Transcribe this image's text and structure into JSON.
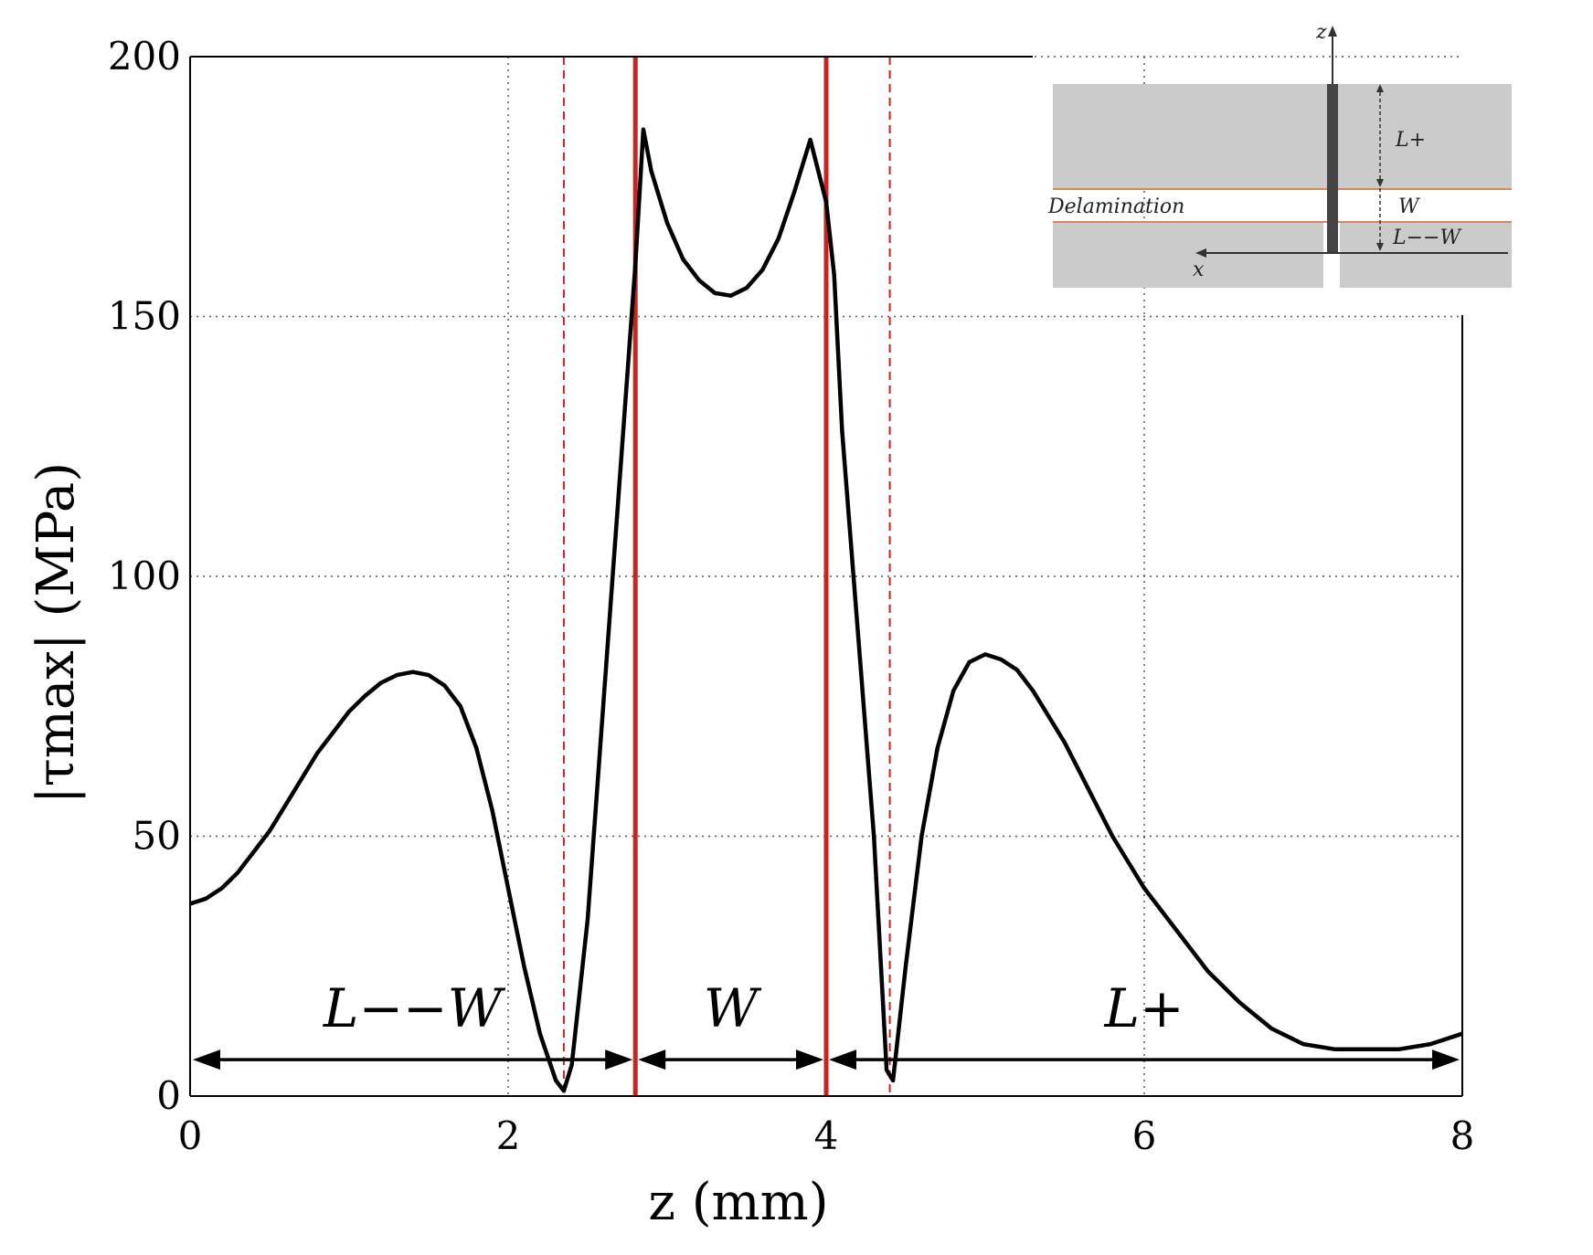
{
  "chart_data": {
    "type": "line",
    "xlabel": "z (mm)",
    "ylabel": "|τmax| (MPa)",
    "xlim": [
      0,
      8
    ],
    "ylim": [
      0,
      200
    ],
    "xticks": [
      "0",
      "2",
      "4",
      "6",
      "8"
    ],
    "yticks": [
      "0",
      "50",
      "100",
      "150",
      "200"
    ],
    "grid": true,
    "series": [
      {
        "x": [
          0,
          0.1,
          0.2,
          0.3,
          0.4,
          0.5,
          0.6,
          0.7,
          0.8,
          0.9,
          1.0,
          1.1,
          1.2,
          1.3,
          1.4,
          1.5,
          1.6,
          1.7,
          1.8,
          1.9,
          2.0,
          2.1,
          2.2,
          2.3,
          2.35,
          2.4,
          2.5,
          2.6,
          2.7,
          2.8,
          2.85,
          2.9,
          3.0,
          3.1,
          3.2,
          3.3,
          3.4,
          3.5,
          3.6,
          3.7,
          3.8,
          3.9,
          4.0,
          4.05,
          4.1,
          4.2,
          4.3,
          4.38,
          4.42,
          4.5,
          4.6,
          4.7,
          4.8,
          4.9,
          5.0,
          5.1,
          5.2,
          5.3,
          5.4,
          5.5,
          5.6,
          5.7,
          5.8,
          5.9,
          6.0,
          6.2,
          6.4,
          6.6,
          6.8,
          7.0,
          7.2,
          7.4,
          7.6,
          7.8,
          8.0
        ],
        "values": [
          37,
          38,
          40,
          43,
          47,
          51,
          56,
          61,
          66,
          70,
          74,
          77,
          79.5,
          81,
          81.6,
          81,
          79,
          75,
          67,
          55,
          40,
          25,
          12,
          3,
          1,
          6,
          34,
          76,
          118,
          160,
          186,
          178,
          168,
          161,
          157,
          154.5,
          154,
          155.5,
          159,
          165,
          174,
          184,
          172,
          158,
          128,
          89,
          50,
          5,
          3,
          25,
          50,
          67,
          78,
          83.5,
          85,
          84,
          82,
          78,
          73,
          68,
          62,
          56,
          50,
          45,
          40,
          32,
          24,
          18,
          13,
          10,
          9,
          9,
          9,
          10,
          12
        ]
      }
    ],
    "boundaries_solid": [
      2.8,
      4.0
    ],
    "boundaries_dashed": [
      2.35,
      4.4
    ],
    "span_arrows": [
      {
        "from": 0,
        "to": 2.8,
        "label": "L−−W"
      },
      {
        "from": 2.8,
        "to": 4.0,
        "label": "W"
      },
      {
        "from": 4.0,
        "to": 8.0,
        "label": "L+"
      }
    ],
    "span_arrow_y": 7
  },
  "inset": {
    "z_label": "z",
    "x_label": "x",
    "delamination_label": "Delamination",
    "l_plus_label": "L+",
    "w_label": "W",
    "l_minus_w_label": "L−−W"
  },
  "colors": {
    "curve": "#000000",
    "boundary": "#cc2222",
    "inset_gray": "#cbcbcb"
  }
}
